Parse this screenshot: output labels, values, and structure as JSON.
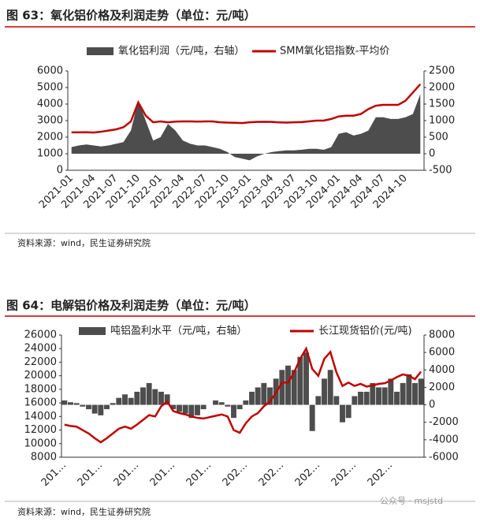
{
  "chart_data": [
    {
      "type": "combo",
      "title": "图 63：氧化铝价格及利润走势（单位：元/吨）",
      "source": "资料来源：wind，民生证券研究院",
      "categories": [
        "2021-01",
        null,
        null,
        "2021-04",
        null,
        null,
        "2021-07",
        null,
        null,
        "2021-10",
        null,
        null,
        "2022-01",
        null,
        null,
        "2022-04",
        null,
        null,
        "2022-07",
        null,
        null,
        "2022-10",
        null,
        null,
        "2023-01",
        null,
        null,
        "2023-04",
        null,
        null,
        "2023-07",
        null,
        null,
        "2023-10",
        null,
        null,
        "2024-01",
        null,
        null,
        "2024-04",
        null,
        null,
        "2024-07",
        null,
        null,
        "2024-10",
        null,
        null
      ],
      "ylim": [
        0,
        6000
      ],
      "yticks": [
        0,
        1000,
        2000,
        3000,
        4000,
        5000,
        6000
      ],
      "y2lim": [
        -500,
        2500
      ],
      "y2ticks": [
        -500,
        0,
        500,
        1000,
        1500,
        2000,
        2500
      ],
      "series": [
        {
          "name": "氧化铝利润（元/吨，右轴）",
          "type": "area",
          "axis": "y2",
          "color": "#4d4d4d",
          "values": [
            200,
            250,
            280,
            250,
            220,
            250,
            300,
            350,
            700,
            1600,
            1000,
            400,
            500,
            900,
            700,
            400,
            300,
            250,
            250,
            200,
            150,
            50,
            -100,
            -150,
            -200,
            -80,
            0,
            50,
            80,
            100,
            100,
            120,
            150,
            150,
            120,
            200,
            600,
            650,
            550,
            600,
            700,
            1100,
            1100,
            1050,
            1050,
            1100,
            1200,
            1800
          ]
        },
        {
          "name": "SMM氧化铝指数-平均价",
          "type": "line",
          "color": "#c00000",
          "values": [
            2290,
            2290,
            2300,
            2280,
            2330,
            2400,
            2470,
            2600,
            2950,
            4100,
            3300,
            2900,
            2950,
            2900,
            2940,
            2950,
            2950,
            2940,
            2950,
            2950,
            2900,
            2880,
            2870,
            2850,
            2900,
            2920,
            2930,
            2920,
            2890,
            2880,
            2900,
            2910,
            2950,
            3000,
            3000,
            3100,
            3250,
            3300,
            3300,
            3400,
            3700,
            3900,
            3950,
            3950,
            3950,
            4200,
            4700,
            5200
          ]
        }
      ]
    },
    {
      "type": "combo",
      "title": "图 64：电解铝价格及利润走势（单位：元/吨）",
      "source": "资料来源：wind，民生证券研究院",
      "categories": [
        "201…",
        null,
        null,
        null,
        null,
        null,
        "201…",
        null,
        null,
        null,
        null,
        null,
        "201…",
        null,
        null,
        null,
        null,
        null,
        "201…",
        null,
        null,
        null,
        null,
        null,
        "201…",
        null,
        null,
        null,
        null,
        null,
        "202…",
        null,
        null,
        null,
        null,
        null,
        "202…",
        null,
        null,
        null,
        null,
        null,
        "202…",
        null,
        null,
        null,
        null,
        null,
        "202…",
        null,
        null,
        null,
        null,
        null,
        "202…",
        null,
        null,
        null,
        null,
        null
      ],
      "ylim": [
        8000,
        26000
      ],
      "yticks": [
        8000,
        10000,
        12000,
        14000,
        16000,
        18000,
        20000,
        22000,
        24000,
        26000
      ],
      "y2lim": [
        -6000,
        8000
      ],
      "y2ticks": [
        -6000,
        -4000,
        -2000,
        0,
        2000,
        4000,
        6000,
        8000
      ],
      "series": [
        {
          "name": "吨铝盈利水平（元/吨，右轴）",
          "type": "bar",
          "axis": "y2",
          "color": "#4d4d4d",
          "values": [
            500,
            300,
            200,
            -200,
            -500,
            -1000,
            -1200,
            -500,
            200,
            800,
            1200,
            800,
            1500,
            2000,
            2500,
            1800,
            1500,
            1200,
            -500,
            -800,
            -1000,
            -1500,
            -1200,
            -500,
            0,
            500,
            300,
            -200,
            -1500,
            -500,
            500,
            1500,
            2000,
            2500,
            2000,
            3000,
            4000,
            4500,
            4000,
            5500,
            6000,
            -3000,
            1000,
            3000,
            4000,
            1000,
            -2000,
            -1500,
            1000,
            1500,
            1500,
            2500,
            2000,
            2000,
            3000,
            1500,
            2500,
            3500,
            2500,
            3000
          ]
        },
        {
          "name": "长江现货铝价(元/吨)",
          "type": "line",
          "color": "#c00000",
          "values": [
            12800,
            12600,
            12500,
            12000,
            11500,
            10800,
            10200,
            10800,
            11500,
            12200,
            12500,
            12200,
            12800,
            13500,
            14200,
            14000,
            15500,
            16200,
            14800,
            14500,
            14300,
            14000,
            13800,
            13700,
            13900,
            14100,
            14300,
            14000,
            12000,
            11600,
            13000,
            14000,
            14500,
            15500,
            16200,
            17500,
            19000,
            19000,
            20500,
            22500,
            24000,
            21000,
            20000,
            22500,
            23500,
            20500,
            18500,
            19000,
            18500,
            18800,
            18400,
            18600,
            18800,
            18900,
            19300,
            19800,
            20200,
            20000,
            19500,
            20600
          ]
        }
      ]
    }
  ],
  "watermark": "公众号 · msjstd"
}
